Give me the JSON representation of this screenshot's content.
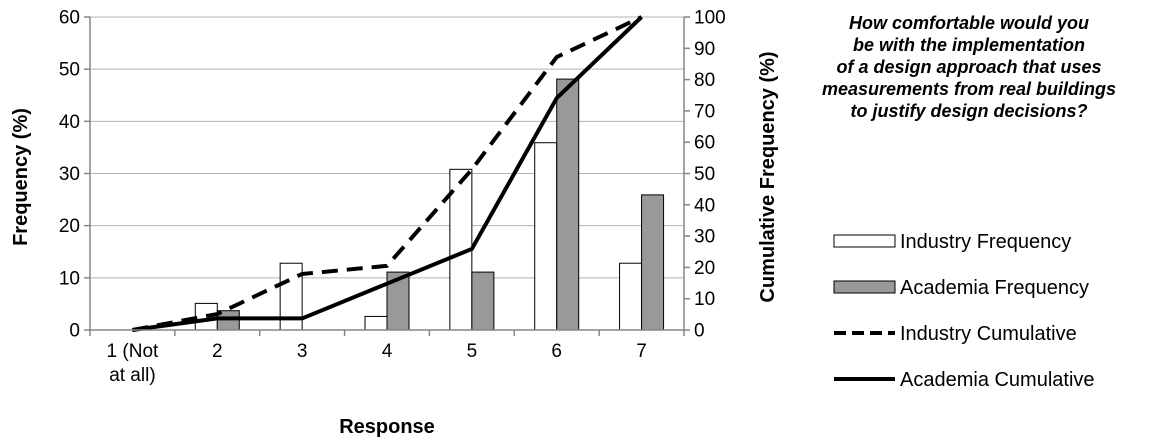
{
  "question": {
    "lines": [
      "How comfortable would you",
      "be with the implementation",
      "of a design approach that uses",
      "measurements from real buildings",
      "to justify design decisions?"
    ]
  },
  "chart_data": {
    "type": "bar",
    "categories": [
      [
        "1 (Not",
        "at all)"
      ],
      [
        "2"
      ],
      [
        "3"
      ],
      [
        "4"
      ],
      [
        "5"
      ],
      [
        "6"
      ],
      [
        "7"
      ]
    ],
    "xlabel": "Response",
    "ylabel": "Frequency (%)",
    "y2label": "Cumulative Frequency (%)",
    "ylim": [
      0,
      60
    ],
    "yticks": [
      0,
      10,
      20,
      30,
      40,
      50,
      60
    ],
    "y2lim": [
      0,
      100
    ],
    "y2ticks": [
      0,
      10,
      20,
      30,
      40,
      50,
      60,
      70,
      80,
      90,
      100
    ],
    "grid": true,
    "legend_position": "right",
    "series": [
      {
        "name": "Industry Frequency",
        "kind": "bar",
        "axis": "left",
        "color": "#ffffff",
        "values": [
          0,
          5.1,
          12.8,
          2.6,
          30.8,
          35.9,
          12.8
        ]
      },
      {
        "name": "Academia Frequency",
        "kind": "bar",
        "axis": "left",
        "color": "#999999",
        "values": [
          0,
          3.7,
          0,
          11.1,
          11.1,
          48.1,
          25.9
        ]
      },
      {
        "name": "Industry Cumulative",
        "kind": "line",
        "axis": "right",
        "dash": "dashed",
        "values": [
          0,
          5.1,
          17.9,
          20.5,
          51.3,
          87.2,
          100
        ]
      },
      {
        "name": "Academia Cumulative",
        "kind": "line",
        "axis": "right",
        "dash": "solid",
        "values": [
          0,
          3.7,
          3.7,
          14.8,
          25.9,
          74.1,
          100
        ]
      }
    ]
  }
}
